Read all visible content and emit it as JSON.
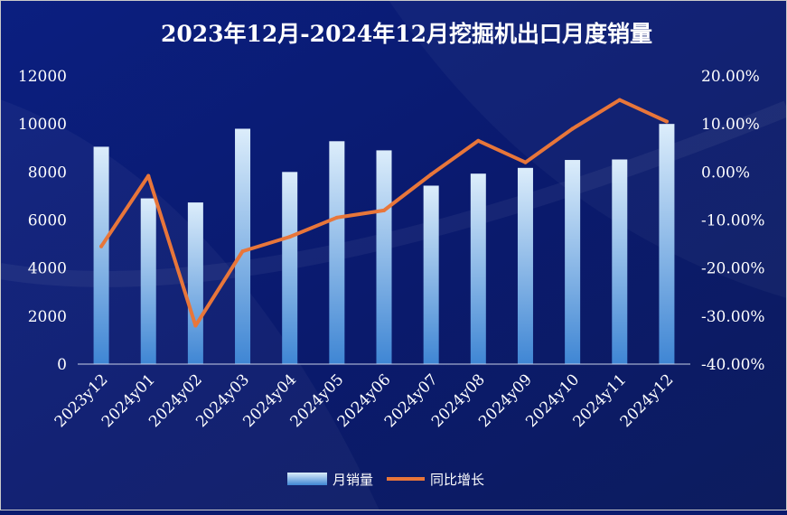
{
  "chart_data": {
    "type": "bar",
    "title": "2023年12月-2024年12月挖掘机出口月度销量",
    "categories": [
      "2023y12",
      "2024y01",
      "2024y02",
      "2024y03",
      "2024y04",
      "2024y05",
      "2024y06",
      "2024y07",
      "2024y08",
      "2024y09",
      "2024y10",
      "2024y11",
      "2024y12"
    ],
    "series": [
      {
        "name": "月销量",
        "type": "bar",
        "axis": "left",
        "values": [
          9050,
          6900,
          6730,
          9800,
          8000,
          9280,
          8900,
          7430,
          7930,
          8170,
          8500,
          8520,
          10000
        ]
      },
      {
        "name": "同比增长",
        "type": "line",
        "axis": "right",
        "values": [
          -15.5,
          -0.8,
          -32.0,
          -16.5,
          -13.5,
          -9.5,
          -8.0,
          -0.5,
          6.5,
          2.0,
          9.0,
          15.0,
          10.5
        ]
      }
    ],
    "y_left": {
      "min": 0,
      "max": 12000,
      "ticks": [
        "0",
        "2000",
        "4000",
        "6000",
        "8000",
        "10000",
        "12000"
      ]
    },
    "y_right": {
      "min": -40,
      "max": 20,
      "ticks": [
        "-40.00%",
        "-30.00%",
        "-20.00%",
        "-10.00%",
        "0.00%",
        "10.00%",
        "20.00%"
      ]
    },
    "legend_position": "bottom",
    "grid": false
  },
  "colors": {
    "background": "#0a1a6e",
    "bar_top": "#d9ecfb",
    "bar_bottom": "#4a90d9",
    "line": "#e8763a",
    "text": "#ffffff"
  }
}
